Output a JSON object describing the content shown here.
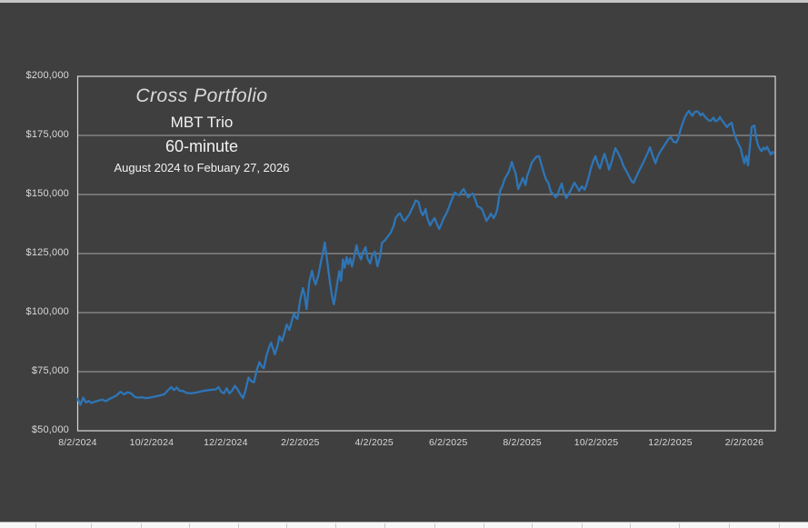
{
  "chart": {
    "title": "Cross Portfolio",
    "subtitle1": "MBT Trio",
    "subtitle2": "60-minute",
    "subtitle3": "August 2024 to Febuary 27, 2026"
  },
  "colors": {
    "chart_background": "#3F3F3F",
    "line": "#2E75B6",
    "gridline": "#A6A6A6",
    "plot_border": "#D9D9D9",
    "axis_text": "#D9D9D9",
    "title_text": "#D9D9D9",
    "subtitle_text": "#F2F2F2"
  },
  "chart_data": {
    "type": "line",
    "title": "Cross Portfolio",
    "subtitle": [
      "MBT Trio",
      "60-minute",
      "August 2024 to Febuary 27, 2026"
    ],
    "xlabel": "",
    "ylabel": "",
    "legend": "none",
    "grid": "horizontal-major",
    "ylim": [
      50000,
      200000
    ],
    "y_axis": {
      "tick_values": [
        50000,
        75000,
        100000,
        125000,
        150000,
        175000,
        200000
      ],
      "tick_labels": [
        "$50,000",
        "$75,000",
        "$100,000",
        "$125,000",
        "$150,000",
        "$175,000",
        "$200,000"
      ]
    },
    "x_axis": {
      "tick_labels": [
        "8/2/2024",
        "10/2/2024",
        "12/2/2024",
        "2/2/2025",
        "4/2/2025",
        "6/2/2025",
        "8/2/2025",
        "10/2/2025",
        "12/2/2025",
        "2/2/2026"
      ],
      "tick_positions": [
        0.0,
        0.1061,
        0.2122,
        0.319,
        0.4251,
        0.5312,
        0.6373,
        0.7434,
        0.8496,
        0.9557
      ]
    },
    "series": [
      {
        "name": "Cross Portfolio equity ($)",
        "color": "#2E75B6",
        "points": [
          [
            0.0,
            63500
          ],
          [
            0.0039,
            61000
          ],
          [
            0.0078,
            64000
          ],
          [
            0.0117,
            62000
          ],
          [
            0.0156,
            62600
          ],
          [
            0.0195,
            61800
          ],
          [
            0.0247,
            62300
          ],
          [
            0.0299,
            62800
          ],
          [
            0.0352,
            63200
          ],
          [
            0.0404,
            62500
          ],
          [
            0.0456,
            63500
          ],
          [
            0.0508,
            64200
          ],
          [
            0.056,
            65000
          ],
          [
            0.0612,
            66500
          ],
          [
            0.0664,
            65400
          ],
          [
            0.0716,
            66300
          ],
          [
            0.0768,
            65800
          ],
          [
            0.082,
            64300
          ],
          [
            0.0872,
            64000
          ],
          [
            0.0924,
            64200
          ],
          [
            0.0977,
            63800
          ],
          [
            0.1029,
            64000
          ],
          [
            0.1081,
            64300
          ],
          [
            0.1133,
            64600
          ],
          [
            0.1185,
            65000
          ],
          [
            0.1237,
            65400
          ],
          [
            0.1289,
            67000
          ],
          [
            0.1341,
            68500
          ],
          [
            0.138,
            67200
          ],
          [
            0.1419,
            68300
          ],
          [
            0.1458,
            67000
          ],
          [
            0.151,
            66800
          ],
          [
            0.1563,
            66000
          ],
          [
            0.1615,
            65800
          ],
          [
            0.1667,
            66000
          ],
          [
            0.1719,
            66300
          ],
          [
            0.1771,
            66700
          ],
          [
            0.1823,
            67000
          ],
          [
            0.1875,
            67200
          ],
          [
            0.1927,
            67400
          ],
          [
            0.1979,
            67500
          ],
          [
            0.2018,
            68500
          ],
          [
            0.2057,
            66500
          ],
          [
            0.2096,
            65800
          ],
          [
            0.2135,
            68000
          ],
          [
            0.2174,
            65800
          ],
          [
            0.2214,
            67000
          ],
          [
            0.2253,
            69000
          ],
          [
            0.2292,
            67500
          ],
          [
            0.2331,
            65500
          ],
          [
            0.237,
            63800
          ],
          [
            0.2409,
            67500
          ],
          [
            0.2448,
            72500
          ],
          [
            0.2487,
            71000
          ],
          [
            0.2526,
            70500
          ],
          [
            0.2565,
            75500
          ],
          [
            0.2604,
            79000
          ],
          [
            0.2643,
            77000
          ],
          [
            0.2669,
            76500
          ],
          [
            0.2708,
            82000
          ],
          [
            0.2747,
            85500
          ],
          [
            0.2773,
            87300
          ],
          [
            0.2826,
            82300
          ],
          [
            0.2865,
            86000
          ],
          [
            0.2891,
            90000
          ],
          [
            0.293,
            88000
          ],
          [
            0.2969,
            92000
          ],
          [
            0.2995,
            95000
          ],
          [
            0.3034,
            92700
          ],
          [
            0.3073,
            97000
          ],
          [
            0.3099,
            99600
          ],
          [
            0.3125,
            98000
          ],
          [
            0.3151,
            97300
          ],
          [
            0.319,
            105400
          ],
          [
            0.3229,
            110400
          ],
          [
            0.3255,
            107000
          ],
          [
            0.3281,
            101500
          ],
          [
            0.332,
            113000
          ],
          [
            0.3359,
            117700
          ],
          [
            0.3385,
            114000
          ],
          [
            0.3411,
            111900
          ],
          [
            0.3451,
            116000
          ],
          [
            0.349,
            122000
          ],
          [
            0.3516,
            125500
          ],
          [
            0.3542,
            129700
          ],
          [
            0.3568,
            124000
          ],
          [
            0.3594,
            118000
          ],
          [
            0.362,
            112000
          ],
          [
            0.3646,
            107000
          ],
          [
            0.3672,
            103500
          ],
          [
            0.3698,
            108000
          ],
          [
            0.3724,
            113000
          ],
          [
            0.375,
            117500
          ],
          [
            0.3776,
            113500
          ],
          [
            0.3802,
            122500
          ],
          [
            0.3828,
            119000
          ],
          [
            0.3854,
            123500
          ],
          [
            0.388,
            120500
          ],
          [
            0.3906,
            123000
          ],
          [
            0.3932,
            119500
          ],
          [
            0.3958,
            123000
          ],
          [
            0.3997,
            128500
          ],
          [
            0.4023,
            125000
          ],
          [
            0.4062,
            122500
          ],
          [
            0.4088,
            125500
          ],
          [
            0.4128,
            127700
          ],
          [
            0.4154,
            123000
          ],
          [
            0.4193,
            120800
          ],
          [
            0.4219,
            124000
          ],
          [
            0.4258,
            125800
          ],
          [
            0.4297,
            119600
          ],
          [
            0.4336,
            124000
          ],
          [
            0.4362,
            129600
          ],
          [
            0.4401,
            130500
          ],
          [
            0.4427,
            131500
          ],
          [
            0.4466,
            133000
          ],
          [
            0.4492,
            134200
          ],
          [
            0.4531,
            137000
          ],
          [
            0.4557,
            140000
          ],
          [
            0.4596,
            141500
          ],
          [
            0.4622,
            142000
          ],
          [
            0.4661,
            139500
          ],
          [
            0.4688,
            138800
          ],
          [
            0.4727,
            140500
          ],
          [
            0.4753,
            141500
          ],
          [
            0.4792,
            144000
          ],
          [
            0.4818,
            145500
          ],
          [
            0.4844,
            147500
          ],
          [
            0.4883,
            146900
          ],
          [
            0.4922,
            142500
          ],
          [
            0.4948,
            141200
          ],
          [
            0.4987,
            143800
          ],
          [
            0.5013,
            140000
          ],
          [
            0.5052,
            136900
          ],
          [
            0.5091,
            139000
          ],
          [
            0.5117,
            140000
          ],
          [
            0.5143,
            138000
          ],
          [
            0.5182,
            135400
          ],
          [
            0.5221,
            138000
          ],
          [
            0.5247,
            140000
          ],
          [
            0.5286,
            142000
          ],
          [
            0.5312,
            143800
          ],
          [
            0.5352,
            147000
          ],
          [
            0.5404,
            150800
          ],
          [
            0.5443,
            150000
          ],
          [
            0.5469,
            149600
          ],
          [
            0.5508,
            151500
          ],
          [
            0.5534,
            152300
          ],
          [
            0.5573,
            150000
          ],
          [
            0.5599,
            148800
          ],
          [
            0.5638,
            150000
          ],
          [
            0.5664,
            150400
          ],
          [
            0.5703,
            147500
          ],
          [
            0.5729,
            145000
          ],
          [
            0.5768,
            144500
          ],
          [
            0.5794,
            143800
          ],
          [
            0.5833,
            141000
          ],
          [
            0.5859,
            138800
          ],
          [
            0.5898,
            140500
          ],
          [
            0.5924,
            141900
          ],
          [
            0.5964,
            140000
          ],
          [
            0.599,
            141500
          ],
          [
            0.6016,
            143800
          ],
          [
            0.6055,
            151500
          ],
          [
            0.6094,
            154000
          ],
          [
            0.612,
            156500
          ],
          [
            0.6159,
            158500
          ],
          [
            0.6185,
            160000
          ],
          [
            0.6224,
            163800
          ],
          [
            0.625,
            161000
          ],
          [
            0.6276,
            159200
          ],
          [
            0.6315,
            152300
          ],
          [
            0.6354,
            155000
          ],
          [
            0.638,
            157000
          ],
          [
            0.6419,
            154000
          ],
          [
            0.6445,
            158000
          ],
          [
            0.6484,
            161000
          ],
          [
            0.651,
            163500
          ],
          [
            0.6549,
            165000
          ],
          [
            0.6576,
            166000
          ],
          [
            0.6615,
            166200
          ],
          [
            0.6654,
            162000
          ],
          [
            0.6693,
            158000
          ],
          [
            0.6719,
            156000
          ],
          [
            0.6745,
            155000
          ],
          [
            0.6784,
            151000
          ],
          [
            0.6823,
            150000
          ],
          [
            0.6849,
            148800
          ],
          [
            0.6875,
            149500
          ],
          [
            0.6901,
            152000
          ],
          [
            0.694,
            154600
          ],
          [
            0.6966,
            151000
          ],
          [
            0.7005,
            148500
          ],
          [
            0.7044,
            150500
          ],
          [
            0.707,
            152000
          ],
          [
            0.7096,
            153500
          ],
          [
            0.7122,
            155000
          ],
          [
            0.7161,
            153000
          ],
          [
            0.7188,
            151500
          ],
          [
            0.7227,
            153500
          ],
          [
            0.7266,
            152000
          ],
          [
            0.7292,
            154000
          ],
          [
            0.7331,
            158000
          ],
          [
            0.7357,
            161000
          ],
          [
            0.7396,
            164500
          ],
          [
            0.7422,
            166200
          ],
          [
            0.7461,
            162500
          ],
          [
            0.7487,
            161000
          ],
          [
            0.7526,
            165000
          ],
          [
            0.7552,
            167200
          ],
          [
            0.7591,
            163500
          ],
          [
            0.7617,
            160500
          ],
          [
            0.7656,
            164000
          ],
          [
            0.7682,
            167000
          ],
          [
            0.7708,
            169600
          ],
          [
            0.7747,
            167500
          ],
          [
            0.7786,
            165200
          ],
          [
            0.7825,
            162000
          ],
          [
            0.7878,
            159200
          ],
          [
            0.7917,
            157000
          ],
          [
            0.7943,
            155500
          ],
          [
            0.7969,
            155000
          ],
          [
            0.8008,
            157500
          ],
          [
            0.8047,
            160000
          ],
          [
            0.8099,
            163000
          ],
          [
            0.8138,
            165500
          ],
          [
            0.8177,
            168000
          ],
          [
            0.8203,
            170000
          ],
          [
            0.8242,
            166500
          ],
          [
            0.8281,
            163200
          ],
          [
            0.832,
            166500
          ],
          [
            0.8359,
            168500
          ],
          [
            0.8398,
            170200
          ],
          [
            0.8438,
            172000
          ],
          [
            0.8477,
            173800
          ],
          [
            0.8503,
            174200
          ],
          [
            0.8542,
            172300
          ],
          [
            0.8581,
            172000
          ],
          [
            0.8607,
            173500
          ],
          [
            0.8646,
            178000
          ],
          [
            0.8698,
            182300
          ],
          [
            0.8737,
            184500
          ],
          [
            0.8763,
            185400
          ],
          [
            0.8789,
            184000
          ],
          [
            0.8815,
            183300
          ],
          [
            0.8841,
            184800
          ],
          [
            0.8867,
            185200
          ],
          [
            0.8893,
            185000
          ],
          [
            0.8932,
            183500
          ],
          [
            0.8958,
            184300
          ],
          [
            0.8984,
            183200
          ],
          [
            0.9023,
            182000
          ],
          [
            0.9049,
            181300
          ],
          [
            0.9075,
            181200
          ],
          [
            0.9115,
            182500
          ],
          [
            0.9141,
            181000
          ],
          [
            0.918,
            181500
          ],
          [
            0.9206,
            182800
          ],
          [
            0.9232,
            181500
          ],
          [
            0.9271,
            180000
          ],
          [
            0.931,
            178500
          ],
          [
            0.9336,
            179500
          ],
          [
            0.9375,
            180400
          ],
          [
            0.9401,
            177000
          ],
          [
            0.944,
            173500
          ],
          [
            0.9479,
            171000
          ],
          [
            0.9505,
            169500
          ],
          [
            0.9531,
            166000
          ],
          [
            0.9557,
            163200
          ],
          [
            0.9583,
            166300
          ],
          [
            0.9609,
            162300
          ],
          [
            0.9635,
            170000
          ],
          [
            0.9661,
            178500
          ],
          [
            0.97,
            179200
          ],
          [
            0.9727,
            174000
          ],
          [
            0.9753,
            170800
          ],
          [
            0.9779,
            169300
          ],
          [
            0.9805,
            168300
          ],
          [
            0.9831,
            169800
          ],
          [
            0.9857,
            169000
          ],
          [
            0.9883,
            170200
          ],
          [
            0.9909,
            168500
          ],
          [
            0.9935,
            166900
          ],
          [
            0.9961,
            168000
          ],
          [
            0.9974,
            167500
          ]
        ]
      }
    ]
  }
}
